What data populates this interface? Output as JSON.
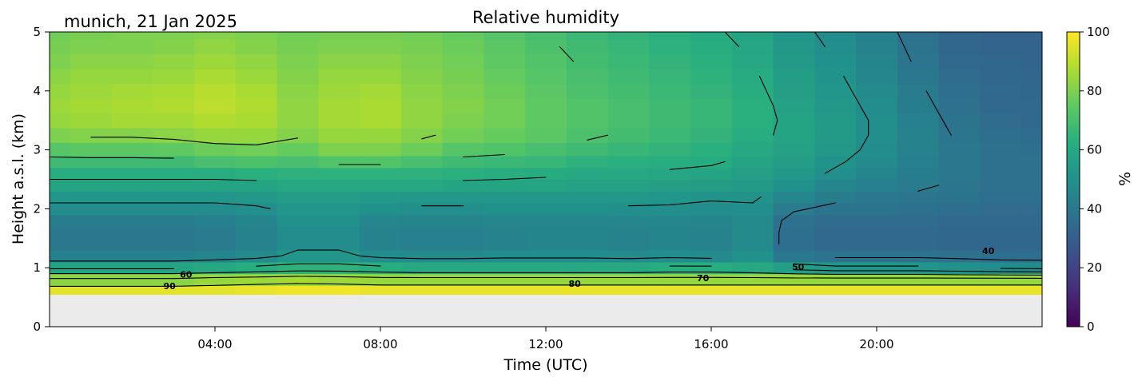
{
  "chart_data": {
    "type": "heatmap",
    "title": "Relative humidity",
    "subtitle": "munich, 21 Jan 2025",
    "xlabel": "Time (UTC)",
    "ylabel": "Height a.s.l. (km)",
    "x_unit": "hours UTC",
    "xlim": [
      0,
      24
    ],
    "ylim": [
      0,
      5
    ],
    "x_ticks": [
      {
        "value": 4,
        "label": "04:00"
      },
      {
        "value": 8,
        "label": "08:00"
      },
      {
        "value": 12,
        "label": "12:00"
      },
      {
        "value": 16,
        "label": "16:00"
      },
      {
        "value": 20,
        "label": "20:00"
      }
    ],
    "y_ticks": [
      {
        "value": 0,
        "label": "0"
      },
      {
        "value": 1,
        "label": "1"
      },
      {
        "value": 2,
        "label": "2"
      },
      {
        "value": 3,
        "label": "3"
      },
      {
        "value": 4,
        "label": "4"
      },
      {
        "value": 5,
        "label": "5"
      }
    ],
    "no_data_below_km": 0.55,
    "colormap": "viridis",
    "colorbar": {
      "label": "%",
      "range": [
        0,
        100
      ],
      "ticks": [
        {
          "value": 0,
          "label": "0"
        },
        {
          "value": 20,
          "label": "20"
        },
        {
          "value": 40,
          "label": "40"
        },
        {
          "value": 60,
          "label": "60"
        },
        {
          "value": 80,
          "label": "80"
        },
        {
          "value": 100,
          "label": "100"
        }
      ]
    },
    "contour_levels": [
      40,
      50,
      60,
      70,
      80,
      90
    ],
    "contour_labels": [
      {
        "text": "60",
        "x": 3.3,
        "y": 0.83
      },
      {
        "text": "90",
        "x": 2.9,
        "y": 0.64
      },
      {
        "text": "80",
        "x": 12.7,
        "y": 0.68
      },
      {
        "text": "70",
        "x": 15.8,
        "y": 0.77
      },
      {
        "text": "50",
        "x": 18.1,
        "y": 0.96
      },
      {
        "text": "40",
        "x": 22.7,
        "y": 1.23
      }
    ],
    "time_hours": [
      0,
      1,
      2,
      3,
      4,
      5,
      6,
      7,
      8,
      9,
      10,
      11,
      12,
      13,
      14,
      15,
      16,
      17,
      18,
      19,
      20,
      21,
      22,
      23,
      24
    ],
    "heights_km": [
      0.6,
      0.8,
      1.0,
      1.2,
      1.4,
      1.6,
      1.8,
      2.0,
      2.2,
      2.4,
      2.6,
      2.8,
      3.0,
      3.25,
      3.5,
      3.75,
      4.0,
      4.25,
      4.5,
      4.75,
      5.0
    ],
    "values": [
      [
        96,
        82,
        58,
        44,
        40,
        40,
        42,
        48,
        52,
        58,
        62,
        68,
        73,
        80,
        84,
        85,
        84,
        82,
        80,
        79,
        78
      ],
      [
        96,
        82,
        58,
        44,
        40,
        40,
        42,
        48,
        52,
        58,
        62,
        68,
        74,
        81,
        85,
        86,
        85,
        84,
        82,
        80,
        79
      ],
      [
        96,
        82,
        58,
        44,
        40,
        40,
        42,
        48,
        52,
        58,
        62,
        68,
        74,
        81,
        86,
        87,
        86,
        84,
        82,
        80,
        80
      ],
      [
        96,
        82,
        58,
        44,
        40,
        40,
        42,
        48,
        52,
        58,
        62,
        68,
        75,
        82,
        86,
        88,
        87,
        85,
        83,
        81,
        80
      ],
      [
        96,
        84,
        60,
        45,
        41,
        41,
        43,
        48,
        52,
        58,
        62,
        70,
        77,
        84,
        88,
        90,
        89,
        87,
        85,
        83,
        81
      ],
      [
        97,
        85,
        62,
        47,
        44,
        44,
        45,
        49,
        53,
        58,
        63,
        71,
        78,
        84,
        87,
        88,
        87,
        85,
        83,
        81,
        80
      ],
      [
        98,
        86,
        64,
        52,
        48,
        48,
        50,
        52,
        55,
        60,
        64,
        70,
        76,
        81,
        83,
        83,
        82,
        81,
        80,
        79,
        78
      ],
      [
        98,
        85,
        64,
        52,
        48,
        48,
        50,
        52,
        55,
        60,
        64,
        72,
        80,
        84,
        86,
        86,
        85,
        84,
        82,
        80,
        79
      ],
      [
        97,
        84,
        62,
        48,
        44,
        44,
        46,
        50,
        54,
        60,
        64,
        72,
        80,
        84,
        87,
        87,
        86,
        84,
        82,
        80,
        79
      ],
      [
        97,
        84,
        60,
        47,
        43,
        43,
        45,
        49,
        53,
        60,
        64,
        70,
        77,
        81,
        83,
        83,
        82,
        81,
        80,
        79,
        78
      ],
      [
        97,
        84,
        60,
        47,
        43,
        43,
        45,
        49,
        53,
        58,
        63,
        68,
        73,
        78,
        80,
        81,
        80,
        79,
        78,
        77,
        76
      ],
      [
        97,
        84,
        60,
        48,
        44,
        44,
        46,
        50,
        53,
        58,
        62,
        67,
        72,
        76,
        78,
        78,
        77,
        76,
        75,
        74,
        73
      ],
      [
        97,
        84,
        60,
        48,
        45,
        45,
        46,
        50,
        53,
        58,
        61,
        66,
        70,
        74,
        75,
        75,
        74,
        73,
        72,
        71,
        70
      ],
      [
        97,
        84,
        60,
        48,
        45,
        45,
        46,
        50,
        53,
        57,
        60,
        64,
        68,
        71,
        72,
        72,
        71,
        70,
        69,
        68,
        67
      ],
      [
        97,
        84,
        60,
        47,
        44,
        44,
        46,
        49,
        53,
        57,
        60,
        63,
        66,
        69,
        70,
        70,
        69,
        68,
        67,
        66,
        65
      ],
      [
        97,
        84,
        62,
        48,
        45,
        45,
        46,
        49,
        52,
        56,
        59,
        62,
        65,
        67,
        68,
        68,
        67,
        66,
        65,
        64,
        63
      ],
      [
        97,
        84,
        62,
        47,
        44,
        44,
        45,
        48,
        51,
        55,
        58,
        61,
        63,
        65,
        66,
        66,
        65,
        64,
        63,
        62,
        61
      ],
      [
        97,
        84,
        60,
        50,
        47,
        47,
        47,
        49,
        51,
        54,
        56,
        58,
        60,
        62,
        63,
        63,
        62,
        61,
        60,
        59,
        58
      ],
      [
        97,
        84,
        55,
        40,
        36,
        36,
        37,
        41,
        46,
        50,
        53,
        55,
        57,
        58,
        58,
        57,
        56,
        55,
        54,
        53,
        52
      ],
      [
        97,
        84,
        52,
        38,
        34,
        34,
        35,
        38,
        42,
        46,
        49,
        51,
        53,
        54,
        54,
        53,
        52,
        51,
        50,
        49,
        48
      ],
      [
        97,
        84,
        52,
        38,
        34,
        34,
        35,
        38,
        40,
        43,
        45,
        47,
        48,
        49,
        49,
        48,
        47,
        46,
        45,
        44,
        43
      ],
      [
        97,
        84,
        52,
        38,
        34,
        34,
        35,
        37,
        39,
        41,
        42,
        43,
        44,
        44,
        43,
        42,
        41,
        40,
        39,
        38,
        37
      ],
      [
        97,
        84,
        50,
        37,
        33,
        33,
        34,
        36,
        38,
        39,
        40,
        40,
        40,
        39,
        38,
        37,
        36,
        35,
        34,
        33,
        33
      ],
      [
        97,
        84,
        48,
        36,
        33,
        33,
        34,
        35,
        36,
        37,
        37,
        37,
        37,
        36,
        35,
        34,
        34,
        33,
        33,
        32,
        32
      ],
      [
        97,
        84,
        47,
        36,
        33,
        33,
        34,
        35,
        36,
        37,
        37,
        37,
        36,
        35,
        34,
        34,
        33,
        33,
        32,
        32,
        32
      ]
    ]
  }
}
